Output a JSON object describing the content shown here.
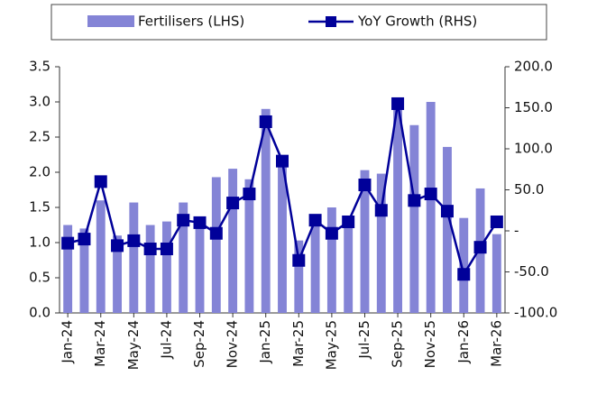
{
  "chart_data": {
    "type": "bar-line",
    "categories": [
      "Jan-24",
      null,
      "Mar-24",
      null,
      "May-24",
      null,
      "Jul-24",
      null,
      "Sep-24",
      null,
      "Nov-24",
      null,
      "Jan-25",
      null,
      "Mar-25",
      null,
      "May-25",
      null,
      "Jul-25",
      null,
      "Sep-25",
      null,
      "Nov-25",
      null,
      "Jan-26",
      null,
      "Mar-26"
    ],
    "series": [
      {
        "name": "Fertilisers (LHS)",
        "type": "bar",
        "color": "#8484d6",
        "values": [
          1.25,
          1.2,
          1.6,
          1.1,
          1.57,
          1.25,
          1.3,
          1.57,
          1.35,
          1.93,
          2.05,
          1.9,
          2.9,
          2.2,
          1.03,
          1.35,
          1.5,
          1.25,
          2.03,
          1.98,
          2.95,
          2.67,
          3.0,
          2.36,
          1.35,
          1.77,
          1.12
        ]
      },
      {
        "name": "YoY Growth (RHS)",
        "type": "line",
        "axis": "y2",
        "color": "#000099",
        "values": [
          -15,
          -10,
          60,
          -18,
          -12,
          -22,
          -22,
          13,
          10,
          -3,
          34,
          45,
          133,
          85,
          -36,
          13,
          -3,
          11,
          56,
          25,
          155,
          37,
          45,
          24,
          -53,
          -20,
          11
        ]
      }
    ],
    "ylim": [
      0,
      3.5
    ],
    "yticks": [
      {
        "value": 0,
        "label": "0.0"
      },
      0.5,
      {
        "value": 1,
        "label": "1.0"
      },
      1.5,
      {
        "value": 2,
        "label": "2.0"
      },
      2.5,
      {
        "value": 3,
        "label": "3.0"
      },
      3.5
    ],
    "y2lim": [
      -100,
      200
    ],
    "y2ticks": [
      {
        "value": -100,
        "label": "-100.0"
      },
      {
        "value": -50,
        "label": "-50.0"
      },
      {
        "value": 0,
        "label": "-"
      },
      {
        "value": 50,
        "label": "50.0"
      },
      {
        "value": 100,
        "label": "100.0"
      },
      {
        "value": 150,
        "label": "150.0"
      },
      {
        "value": 200,
        "label": "200.0"
      }
    ],
    "legend": "top",
    "grid": false
  }
}
